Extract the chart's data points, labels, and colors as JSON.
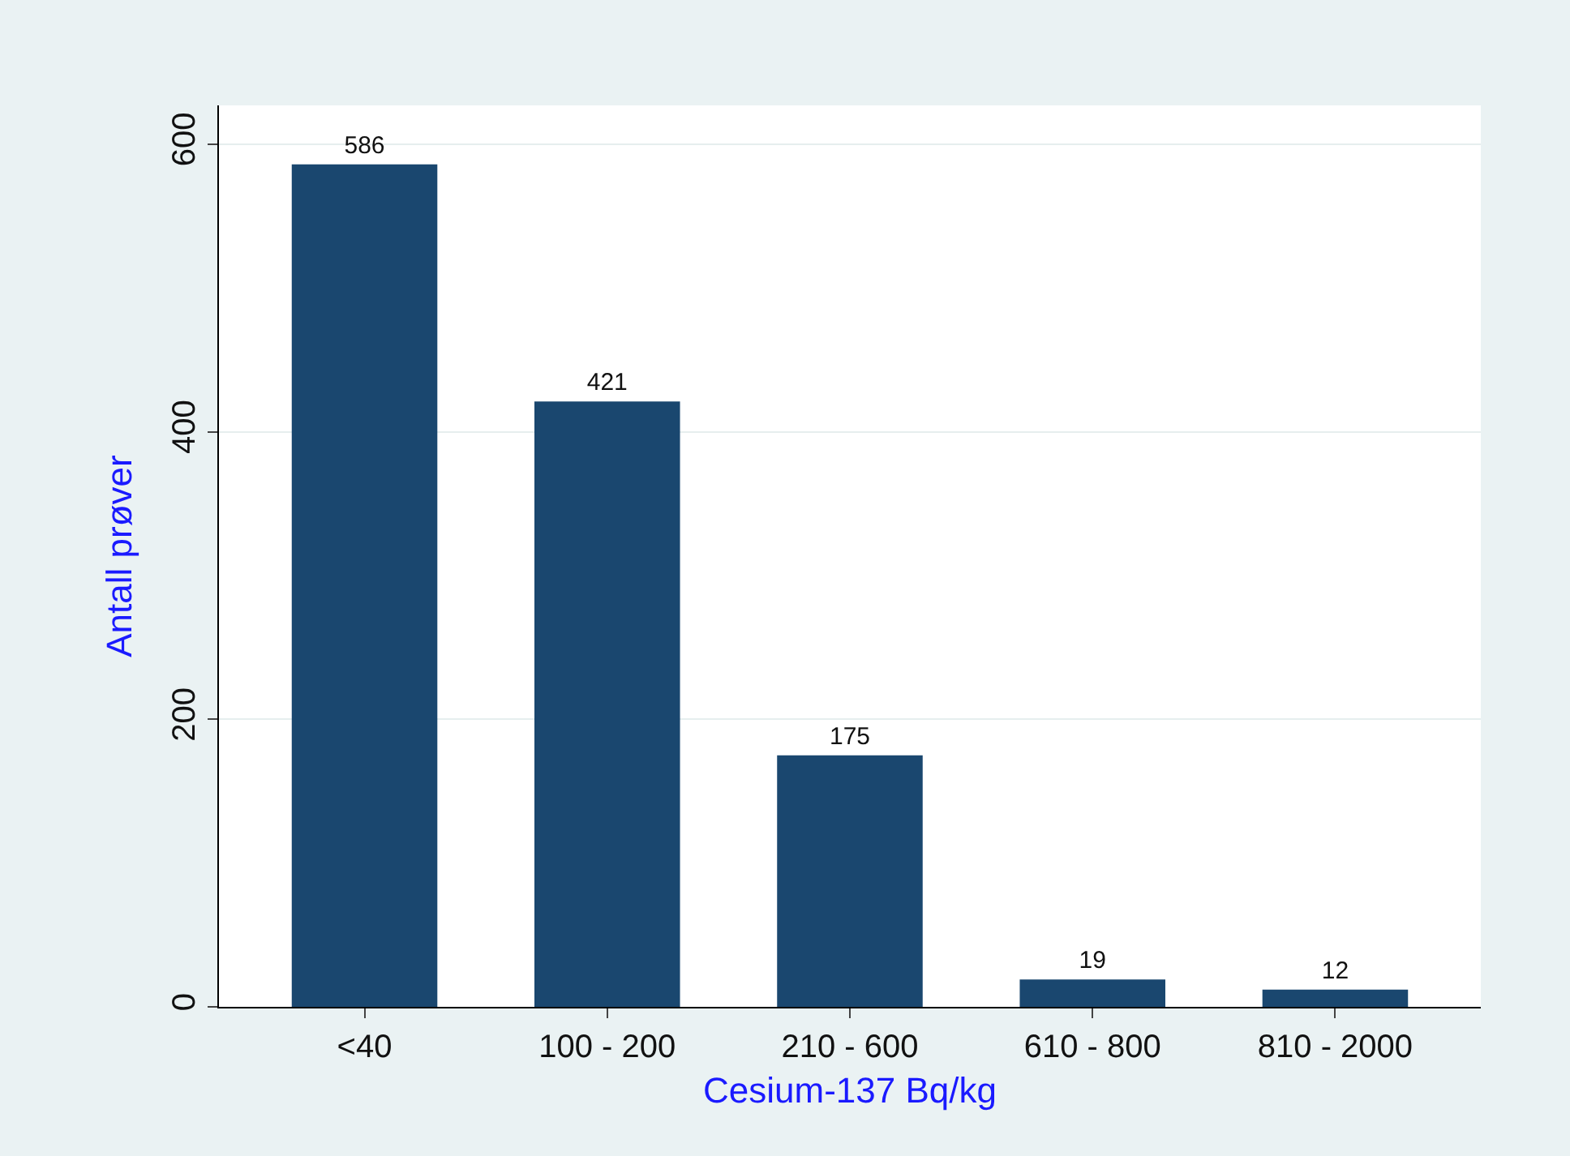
{
  "chart_data": {
    "type": "bar",
    "xlabel": "Cesium-137 Bq/kg",
    "ylabel": "Antall prøver",
    "categories": [
      "<40",
      "100 - 200",
      "210 - 600",
      "610 - 800",
      "810 - 2000"
    ],
    "values": [
      586,
      421,
      175,
      19,
      12
    ],
    "color": "#1a476f",
    "ylim": [
      0,
      627
    ],
    "yticks": [
      0,
      200,
      400,
      600
    ],
    "grid": "y",
    "data_labels": true,
    "legend": false
  }
}
